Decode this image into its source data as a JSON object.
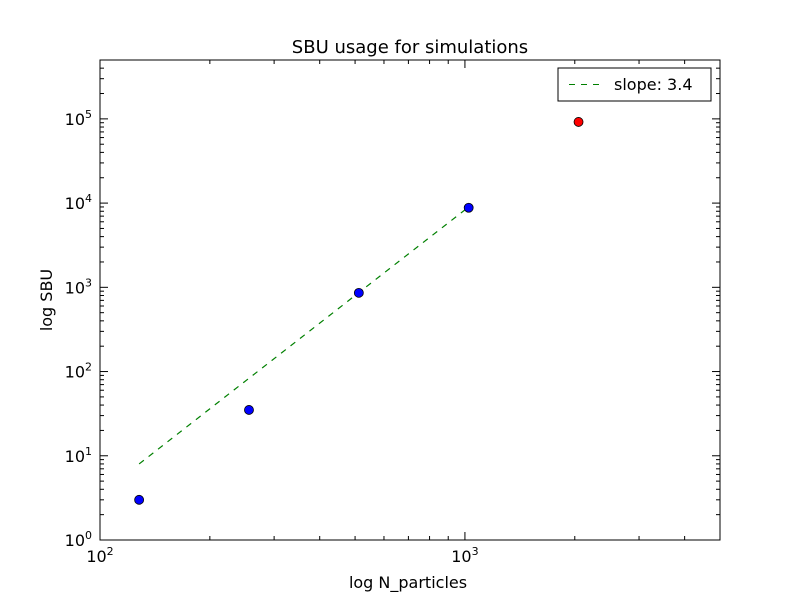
{
  "chart_data": {
    "type": "scatter",
    "title": "SBU usage for simulations",
    "xlabel": "log  N_particles",
    "ylabel": "log  SBU",
    "xscale": "log",
    "yscale": "log",
    "xlim": [
      100,
      5000
    ],
    "ylim": [
      1,
      500000
    ],
    "grid": false,
    "legend_position": "top-right",
    "x_ticks": [
      {
        "value": 100,
        "base": "10",
        "exp": "2"
      },
      {
        "value": 1000,
        "base": "10",
        "exp": "3"
      }
    ],
    "y_ticks": [
      {
        "value": 1,
        "base": "10",
        "exp": "0"
      },
      {
        "value": 10,
        "base": "10",
        "exp": "1"
      },
      {
        "value": 100,
        "base": "10",
        "exp": "2"
      },
      {
        "value": 1000,
        "base": "10",
        "exp": "3"
      },
      {
        "value": 10000,
        "base": "10",
        "exp": "4"
      },
      {
        "value": 100000,
        "base": "10",
        "exp": "5"
      }
    ],
    "points": [
      {
        "x": 128,
        "y": 3,
        "color": "#0000ff"
      },
      {
        "x": 256,
        "y": 35,
        "color": "#0000ff"
      },
      {
        "x": 512,
        "y": 860,
        "color": "#0000ff"
      },
      {
        "x": 1024,
        "y": 8800,
        "color": "#0000ff"
      },
      {
        "x": 2048,
        "y": 92000,
        "color": "#ff0000"
      }
    ],
    "fit_line": {
      "label": "slope: 3.4",
      "color": "#008000",
      "style": "dashed",
      "x": [
        128,
        1024
      ],
      "y": [
        8,
        9000
      ]
    }
  }
}
